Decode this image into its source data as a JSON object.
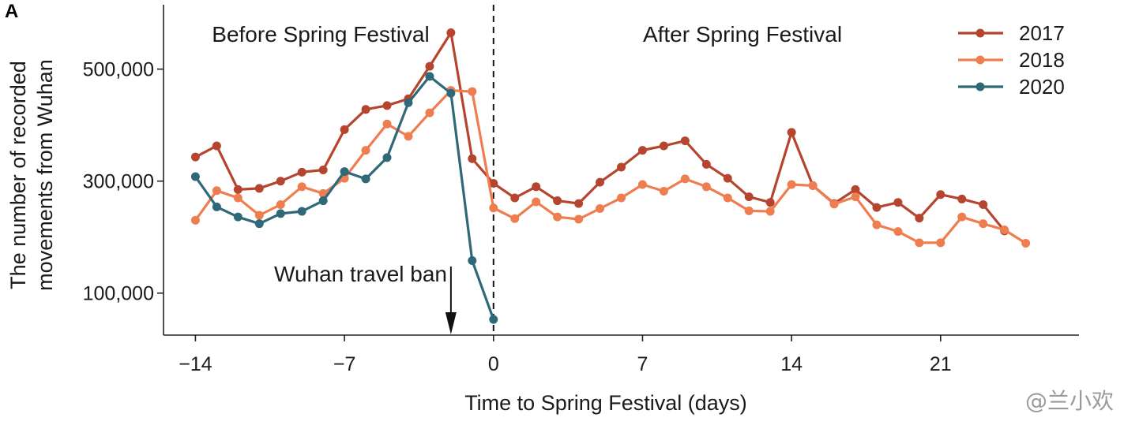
{
  "panel_label": "A",
  "watermark": "@兰小欢",
  "chart_data": {
    "type": "line",
    "title": "",
    "xlabel": "Time to Spring Festival (days)",
    "ylabel_lines": [
      "The number of recorded",
      "movements from Wuhan"
    ],
    "xlim": [
      -15.5,
      27.5
    ],
    "ylim": [
      25000,
      615000
    ],
    "xticks": [
      -14,
      -7,
      0,
      7,
      14,
      21
    ],
    "xtick_labels": [
      "−14",
      "−7",
      "0",
      "7",
      "14",
      "21"
    ],
    "yticks": [
      100000,
      300000,
      500000
    ],
    "ytick_labels": [
      "100,000",
      "300,000",
      "500,000"
    ],
    "grid": false,
    "legend_position": "top-right",
    "annotations": {
      "before": "Before Spring Festival",
      "after": "After Spring Festival",
      "ban": "Wuhan travel ban"
    },
    "ban_day": -2,
    "festival_day": 0,
    "series": [
      {
        "name": "2017",
        "color": "#b5452e",
        "x": [
          -14,
          -13,
          -12,
          -11,
          -10,
          -9,
          -8,
          -7,
          -6,
          -5,
          -4,
          -3,
          -2,
          -1,
          0,
          1,
          2,
          3,
          4,
          5,
          6,
          7,
          8,
          9,
          10,
          11,
          12,
          13,
          14,
          15,
          16,
          17,
          18,
          19,
          20,
          21,
          22,
          23,
          24
        ],
        "values": [
          343000,
          363000,
          285000,
          287000,
          300000,
          316000,
          320000,
          392000,
          428000,
          435000,
          447000,
          505000,
          565000,
          340000,
          296000,
          270000,
          290000,
          265000,
          260000,
          298000,
          325000,
          355000,
          363000,
          372000,
          330000,
          305000,
          272000,
          262000,
          387000,
          292000,
          260000,
          285000,
          253000,
          262000,
          234000,
          276000,
          268000,
          258000,
          211000
        ]
      },
      {
        "name": "2018",
        "color": "#ee7d4f",
        "x": [
          -14,
          -13,
          -12,
          -11,
          -10,
          -9,
          -8,
          -7,
          -6,
          -5,
          -4,
          -3,
          -2,
          -1,
          0,
          1,
          2,
          3,
          4,
          5,
          6,
          7,
          8,
          9,
          10,
          11,
          12,
          13,
          14,
          15,
          16,
          17,
          18,
          19,
          20,
          21,
          22,
          23,
          24,
          25
        ],
        "values": [
          230000,
          283000,
          270000,
          239000,
          258000,
          290000,
          278000,
          305000,
          355000,
          402000,
          380000,
          422000,
          462000,
          460000,
          252000,
          233000,
          263000,
          236000,
          232000,
          251000,
          270000,
          294000,
          282000,
          304000,
          290000,
          270000,
          247000,
          246000,
          294000,
          292000,
          259000,
          272000,
          222000,
          210000,
          190000,
          190000,
          236000,
          224000,
          213000,
          189000
        ]
      },
      {
        "name": "2020",
        "color": "#2f6878",
        "x": [
          -14,
          -13,
          -12,
          -11,
          -10,
          -9,
          -8,
          -7,
          -6,
          -5,
          -4,
          -3,
          -2,
          -1,
          0
        ],
        "values": [
          308000,
          254000,
          236000,
          224000,
          242000,
          246000,
          265000,
          317000,
          304000,
          342000,
          440000,
          487000,
          457000,
          158000,
          53000
        ]
      }
    ]
  }
}
